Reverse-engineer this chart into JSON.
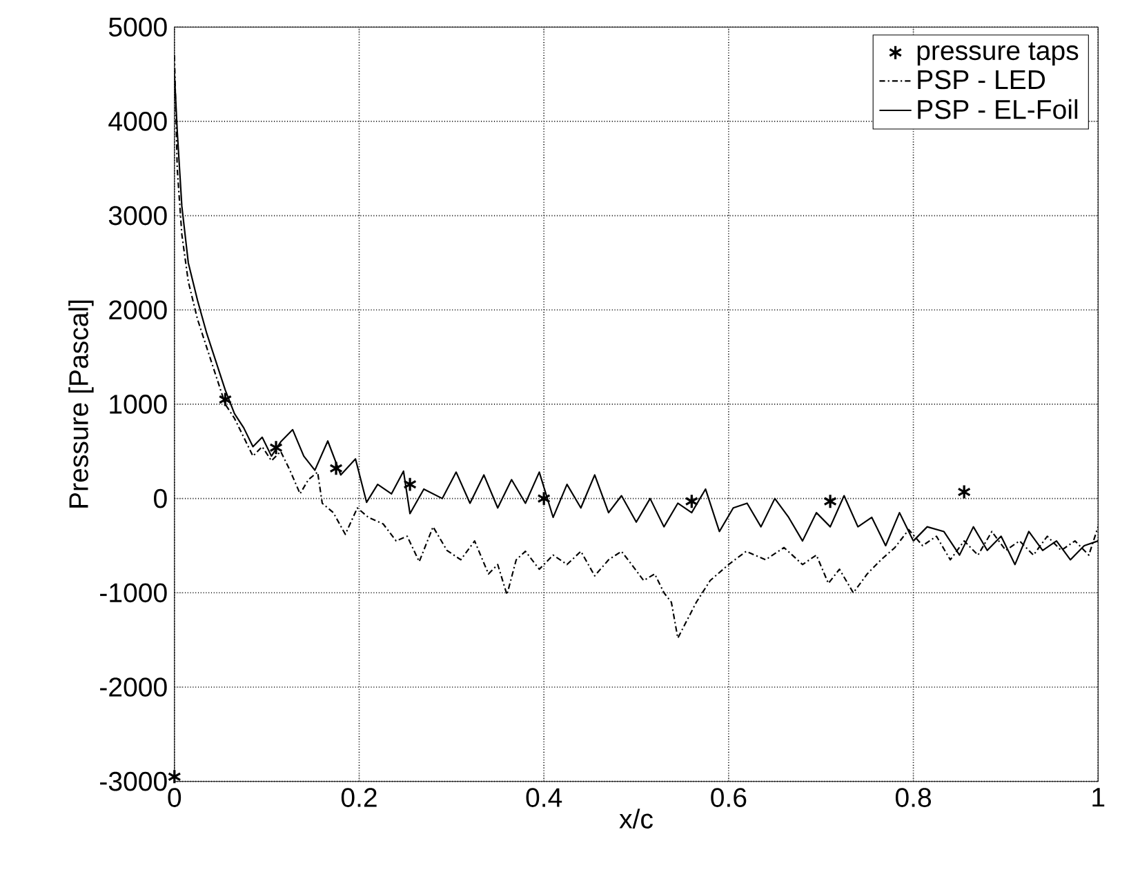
{
  "chart_data": {
    "type": "line",
    "xlabel": "x/c",
    "ylabel": "Pressure [Pascal]",
    "xlim": [
      0,
      1
    ],
    "ylim": [
      -3000,
      5000
    ],
    "xticks": [
      0,
      0.2,
      0.4,
      0.6,
      0.8,
      1
    ],
    "yticks": [
      -3000,
      -2000,
      -1000,
      0,
      1000,
      2000,
      3000,
      4000,
      5000
    ],
    "grid": true,
    "legend": "top right",
    "series": [
      {
        "name": "pressure taps",
        "type": "scatter",
        "marker": "cross",
        "color": "#000000",
        "x": [
          0,
          0.055,
          0.11,
          0.175,
          0.255,
          0.4,
          0.56,
          0.71,
          0.855
        ],
        "values": [
          -2950,
          1050,
          540,
          320,
          150,
          0,
          -30,
          -30,
          70
        ]
      },
      {
        "name": "PSP - LED",
        "type": "line",
        "line_style": "dashed",
        "color": "#000000",
        "x": [
          0,
          0.003,
          0.008,
          0.015,
          0.025,
          0.035,
          0.045,
          0.055,
          0.065,
          0.075,
          0.085,
          0.095,
          0.105,
          0.115,
          0.125,
          0.136,
          0.145,
          0.155,
          0.16,
          0.172,
          0.185,
          0.198,
          0.21,
          0.226,
          0.24,
          0.252,
          0.265,
          0.28,
          0.295,
          0.31,
          0.325,
          0.34,
          0.35,
          0.36,
          0.37,
          0.38,
          0.395,
          0.41,
          0.425,
          0.44,
          0.455,
          0.47,
          0.484,
          0.495,
          0.508,
          0.52,
          0.53,
          0.538,
          0.545,
          0.555,
          0.565,
          0.58,
          0.6,
          0.619,
          0.64,
          0.66,
          0.68,
          0.695,
          0.708,
          0.72,
          0.735,
          0.75,
          0.765,
          0.78,
          0.795,
          0.81,
          0.825,
          0.84,
          0.855,
          0.87,
          0.885,
          0.9,
          0.915,
          0.93,
          0.945,
          0.96,
          0.975,
          0.99,
          1
        ],
        "values": [
          4700,
          3500,
          2800,
          2300,
          1900,
          1600,
          1300,
          1000,
          850,
          650,
          450,
          550,
          400,
          500,
          300,
          50,
          200,
          280,
          -50,
          -150,
          -380,
          -100,
          -200,
          -270,
          -450,
          -400,
          -670,
          -300,
          -550,
          -650,
          -450,
          -800,
          -700,
          -1020,
          -650,
          -560,
          -750,
          -600,
          -700,
          -560,
          -820,
          -650,
          -560,
          -700,
          -870,
          -800,
          -1000,
          -1100,
          -1480,
          -1290,
          -1100,
          -870,
          -700,
          -560,
          -650,
          -520,
          -700,
          -600,
          -900,
          -750,
          -1000,
          -800,
          -650,
          -520,
          -330,
          -500,
          -400,
          -650,
          -450,
          -600,
          -350,
          -550,
          -450,
          -600,
          -400,
          -550,
          -450,
          -600,
          -300
        ]
      },
      {
        "name": "PSP - EL-Foil",
        "line_style": "solid",
        "color": "#000000",
        "x": [
          0,
          0.003,
          0.008,
          0.015,
          0.025,
          0.035,
          0.045,
          0.055,
          0.065,
          0.075,
          0.085,
          0.095,
          0.105,
          0.115,
          0.128,
          0.14,
          0.152,
          0.166,
          0.18,
          0.196,
          0.208,
          0.22,
          0.235,
          0.248,
          0.255,
          0.27,
          0.29,
          0.305,
          0.32,
          0.335,
          0.35,
          0.365,
          0.38,
          0.395,
          0.41,
          0.425,
          0.44,
          0.455,
          0.47,
          0.484,
          0.5,
          0.515,
          0.53,
          0.545,
          0.56,
          0.575,
          0.59,
          0.605,
          0.62,
          0.635,
          0.65,
          0.665,
          0.68,
          0.695,
          0.71,
          0.725,
          0.74,
          0.755,
          0.77,
          0.785,
          0.8,
          0.815,
          0.833,
          0.85,
          0.865,
          0.88,
          0.895,
          0.91,
          0.925,
          0.94,
          0.955,
          0.97,
          0.985,
          1
        ],
        "values": [
          4500,
          3900,
          3100,
          2500,
          2100,
          1750,
          1450,
          1150,
          900,
          750,
          550,
          650,
          450,
          600,
          730,
          450,
          300,
          610,
          250,
          420,
          -40,
          150,
          50,
          290,
          -160,
          100,
          0,
          280,
          -50,
          250,
          -100,
          200,
          -50,
          280,
          -200,
          150,
          -100,
          250,
          -150,
          30,
          -250,
          0,
          -300,
          -50,
          -150,
          100,
          -350,
          -100,
          -50,
          -300,
          0,
          -200,
          -450,
          -150,
          -300,
          30,
          -300,
          -200,
          -500,
          -150,
          -450,
          -300,
          -350,
          -600,
          -300,
          -550,
          -400,
          -700,
          -350,
          -550,
          -450,
          -650,
          -500,
          -450
        ]
      }
    ]
  }
}
